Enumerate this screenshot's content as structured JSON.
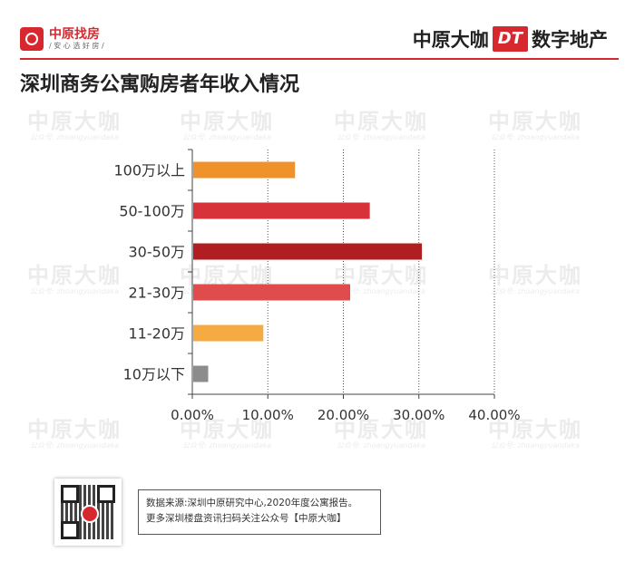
{
  "header": {
    "logo_main": "中原找房",
    "logo_sub": "/ 安 心 选 好 房 /",
    "brand_left": "中原大咖",
    "brand_dt": "DT",
    "brand_right": "数字地产"
  },
  "title": "深圳商务公寓购房者年收入情况",
  "watermark": {
    "big": "中原大咖",
    "small": "公众号: zhoangyuandaka"
  },
  "chart_data": {
    "type": "bar",
    "orientation": "horizontal",
    "categories": [
      "100万以上",
      "50-100万",
      "30-50万",
      "21-30万",
      "11-20万",
      "10万以下"
    ],
    "values": [
      13.6,
      23.5,
      30.4,
      20.9,
      9.4,
      2.1
    ],
    "colors": [
      "#f0922c",
      "#d7323a",
      "#b01e22",
      "#e04b4b",
      "#f5ab42",
      "#8c8c8c"
    ],
    "xlim": [
      0,
      40
    ],
    "xticks": [
      "0.00%",
      "10.00%",
      "20.00%",
      "30.00%",
      "40.00%"
    ],
    "xgrid": "dotted",
    "xlabel": "",
    "ylabel": ""
  },
  "footer": {
    "source_line1": "数据来源:深圳中原研究中心,2020年度公寓报告。",
    "source_line2": "更多深圳楼盘资讯扫码关注公众号【中原大咖】"
  }
}
